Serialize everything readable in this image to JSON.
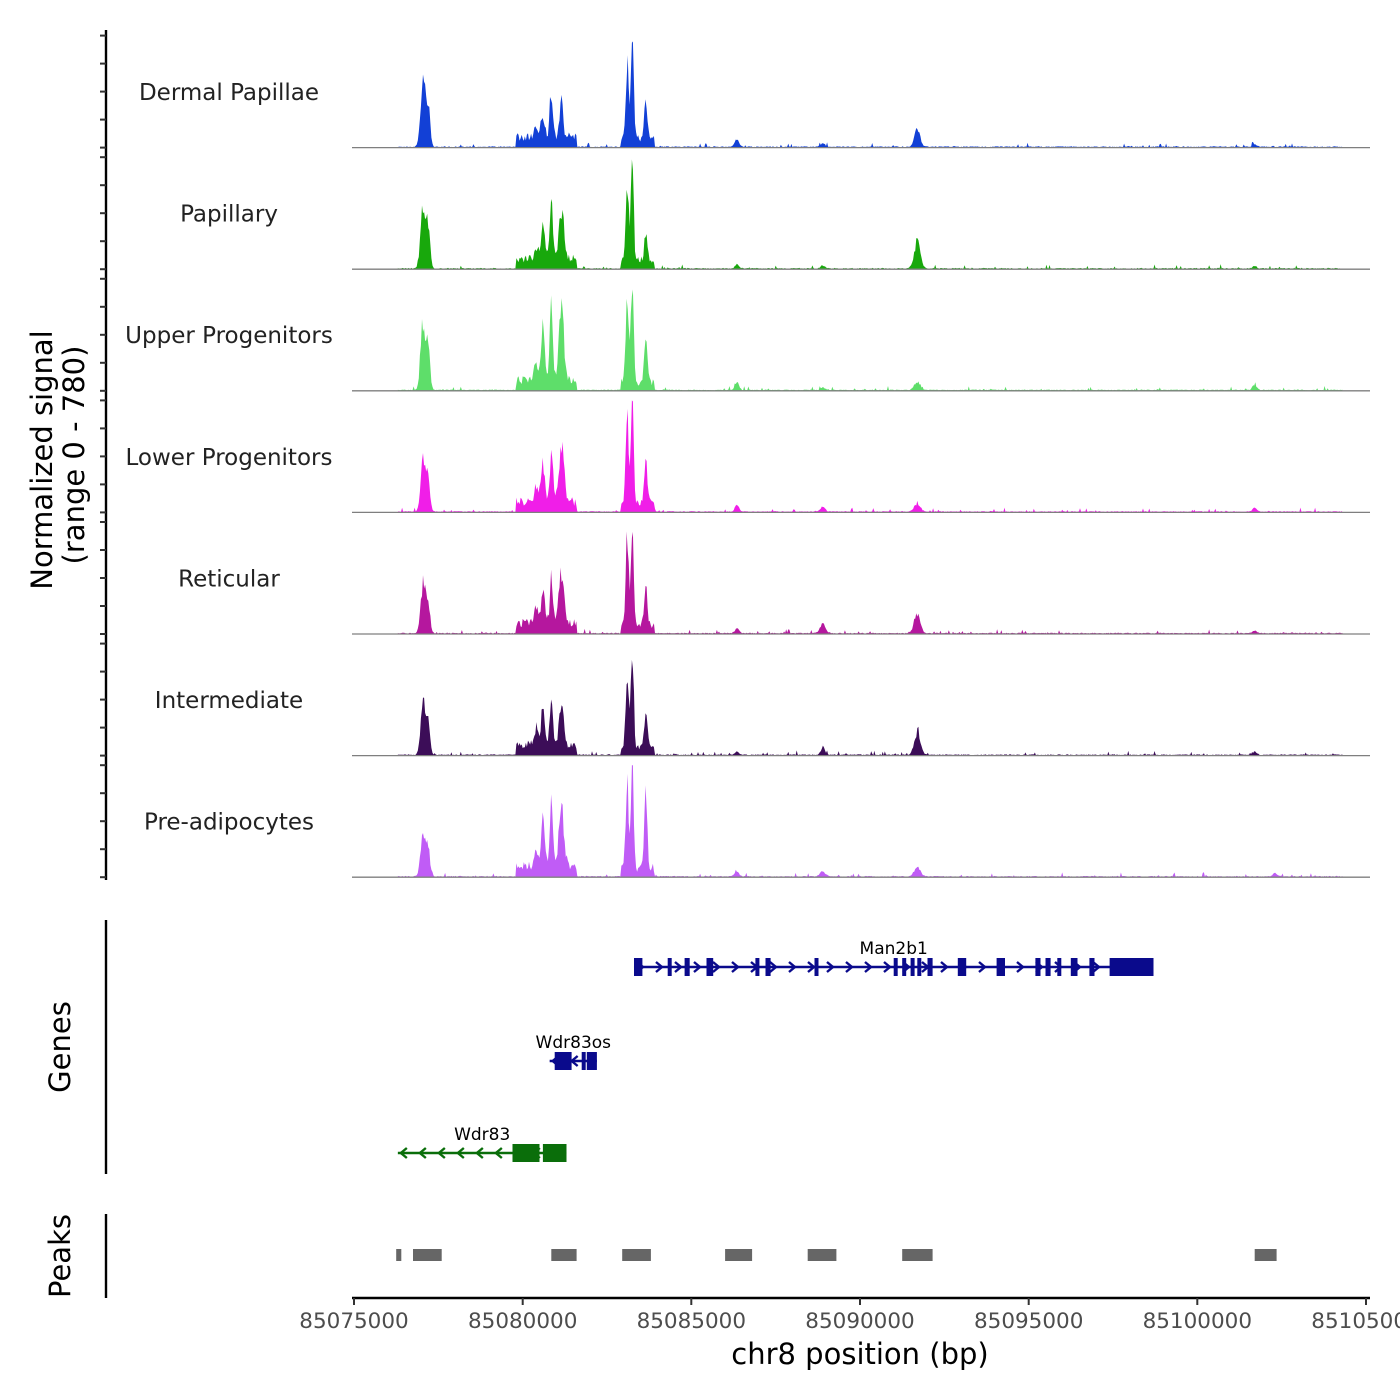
{
  "chart_data": {
    "type": "area",
    "chrom": "chr8",
    "xlabel": "chr8 position (bp)",
    "ylabel": "Normalized signal",
    "ylabel_range": "(range 0 - 780)",
    "ylim": [
      0,
      780
    ],
    "xlim": [
      85075000,
      85105000
    ],
    "x_ticks": [
      85075000,
      85080000,
      85085000,
      85090000,
      85095000,
      85100000,
      85105000
    ],
    "x_tick_labels": [
      "85075000",
      "85080000",
      "85085000",
      "85090000",
      "85095000",
      "85100000",
      "85105000"
    ],
    "signal_start": 85076300,
    "signal_end": 85104300,
    "tracks": [
      {
        "name": "Dermal Papillae",
        "color": "#1240d6",
        "peaks": [
          [
            85077050,
            540,
            70
          ],
          [
            85077200,
            300,
            55
          ],
          [
            85080400,
            90,
            60
          ],
          [
            85080600,
            160,
            55
          ],
          [
            85080850,
            330,
            45
          ],
          [
            85081150,
            280,
            50
          ],
          [
            85083100,
            550,
            45
          ],
          [
            85083250,
            780,
            40
          ],
          [
            85083650,
            320,
            45
          ],
          [
            85086350,
            60,
            60
          ],
          [
            85088900,
            25,
            60
          ],
          [
            85091700,
            130,
            80
          ],
          [
            85101700,
            18,
            60
          ]
        ]
      },
      {
        "name": "Papillary",
        "color": "#18a80c",
        "peaks": [
          [
            85077050,
            500,
            70
          ],
          [
            85077200,
            300,
            55
          ],
          [
            85080400,
            90,
            60
          ],
          [
            85080600,
            260,
            55
          ],
          [
            85080850,
            420,
            45
          ],
          [
            85081150,
            380,
            70
          ],
          [
            85083100,
            600,
            45
          ],
          [
            85083250,
            780,
            40
          ],
          [
            85083650,
            220,
            45
          ],
          [
            85086350,
            30,
            60
          ],
          [
            85088900,
            22,
            60
          ],
          [
            85091700,
            200,
            90
          ],
          [
            85101700,
            18,
            60
          ]
        ]
      },
      {
        "name": "Upper Progenitors",
        "color": "#5ede6a",
        "peaks": [
          [
            85077050,
            530,
            70
          ],
          [
            85077200,
            300,
            55
          ],
          [
            85080400,
            120,
            60
          ],
          [
            85080600,
            420,
            55
          ],
          [
            85080850,
            560,
            45
          ],
          [
            85081150,
            560,
            70
          ],
          [
            85083100,
            650,
            45
          ],
          [
            85083250,
            780,
            40
          ],
          [
            85083650,
            320,
            45
          ],
          [
            85086350,
            60,
            60
          ],
          [
            85088900,
            22,
            60
          ],
          [
            85091700,
            60,
            90
          ],
          [
            85101700,
            40,
            60
          ]
        ]
      },
      {
        "name": "Lower Progenitors",
        "color": "#f01ee8",
        "peaks": [
          [
            85077050,
            420,
            70
          ],
          [
            85077200,
            250,
            55
          ],
          [
            85080400,
            120,
            60
          ],
          [
            85080600,
            300,
            55
          ],
          [
            85080850,
            380,
            45
          ],
          [
            85081150,
            420,
            80
          ],
          [
            85083100,
            650,
            45
          ],
          [
            85083250,
            780,
            40
          ],
          [
            85083650,
            340,
            45
          ],
          [
            85086350,
            50,
            60
          ],
          [
            85088900,
            40,
            60
          ],
          [
            85091700,
            60,
            90
          ],
          [
            85101700,
            30,
            60
          ]
        ]
      },
      {
        "name": "Reticular",
        "color": "#b5179e",
        "peaks": [
          [
            85077050,
            370,
            70
          ],
          [
            85077200,
            220,
            55
          ],
          [
            85080400,
            120,
            60
          ],
          [
            85080600,
            250,
            55
          ],
          [
            85080850,
            340,
            45
          ],
          [
            85081150,
            360,
            80
          ],
          [
            85083100,
            640,
            45
          ],
          [
            85083250,
            780,
            40
          ],
          [
            85083650,
            300,
            45
          ],
          [
            85086350,
            35,
            60
          ],
          [
            85088900,
            70,
            80
          ],
          [
            85091700,
            140,
            90
          ],
          [
            85101700,
            18,
            60
          ]
        ]
      },
      {
        "name": "Intermediate",
        "color": "#3c0d58",
        "peaks": [
          [
            85077050,
            380,
            70
          ],
          [
            85077200,
            220,
            55
          ],
          [
            85080400,
            120,
            60
          ],
          [
            85080600,
            260,
            55
          ],
          [
            85080850,
            330,
            45
          ],
          [
            85081150,
            300,
            70
          ],
          [
            85083100,
            640,
            45
          ],
          [
            85083250,
            780,
            40
          ],
          [
            85083650,
            260,
            45
          ],
          [
            85086350,
            25,
            60
          ],
          [
            85088900,
            60,
            60
          ],
          [
            85091700,
            170,
            90
          ],
          [
            85101700,
            25,
            60
          ]
        ]
      },
      {
        "name": "Pre-adipocytes",
        "color": "#c05cf6",
        "peaks": [
          [
            85077050,
            350,
            70
          ],
          [
            85077200,
            200,
            55
          ],
          [
            85080400,
            110,
            60
          ],
          [
            85080600,
            340,
            55
          ],
          [
            85080850,
            480,
            45
          ],
          [
            85081150,
            400,
            80
          ],
          [
            85083100,
            680,
            45
          ],
          [
            85083250,
            780,
            40
          ],
          [
            85083650,
            560,
            45
          ],
          [
            85086350,
            40,
            60
          ],
          [
            85088900,
            40,
            80
          ],
          [
            85091700,
            70,
            90
          ],
          [
            85102300,
            30,
            60
          ]
        ]
      }
    ],
    "genes_label": "Genes",
    "genes": [
      {
        "name": "Man2b1",
        "strand": "+",
        "start": 85083300,
        "end": 85098700,
        "color": "#0a0a8c",
        "row": 0,
        "exons": [
          [
            85083300,
            85083550
          ],
          [
            85084300,
            85084400
          ],
          [
            85084800,
            85084950
          ],
          [
            85085450,
            85085650
          ],
          [
            85086900,
            85087000
          ],
          [
            85087200,
            85087350
          ],
          [
            85088650,
            85088750
          ],
          [
            85091000,
            85091100
          ],
          [
            85091250,
            85091350
          ],
          [
            85091500,
            85091600
          ],
          [
            85091700,
            85091800
          ],
          [
            85092000,
            85092150
          ],
          [
            85092900,
            85093150
          ],
          [
            85094050,
            85094300
          ],
          [
            85095200,
            85095350
          ],
          [
            85095500,
            85095650
          ],
          [
            85095850,
            85095950
          ],
          [
            85096250,
            85096450
          ],
          [
            85096800,
            85096950
          ],
          [
            85097400,
            85098700
          ]
        ]
      },
      {
        "name": "Wdr83os",
        "strand": "-",
        "start": 85080800,
        "end": 85082200,
        "color": "#0a0a8c",
        "row": 1,
        "exons": [
          [
            85080950,
            85081450
          ],
          [
            85081750,
            85081850
          ],
          [
            85081900,
            85082200
          ]
        ]
      },
      {
        "name": "Wdr83",
        "strand": "-",
        "start": 85076300,
        "end": 85081300,
        "color": "#0a6e0a",
        "row": 2,
        "exons": [
          [
            85079700,
            85080500
          ],
          [
            85080600,
            85081300
          ]
        ]
      }
    ],
    "peaks_label": "Peaks",
    "peak_regions": [
      [
        85076250,
        85076400
      ],
      [
        85076750,
        85077600
      ],
      [
        85080850,
        85081600
      ],
      [
        85082950,
        85083800
      ],
      [
        85086000,
        85086800
      ],
      [
        85088450,
        85089300
      ],
      [
        85091250,
        85092150
      ],
      [
        85101700,
        85102350
      ]
    ]
  }
}
